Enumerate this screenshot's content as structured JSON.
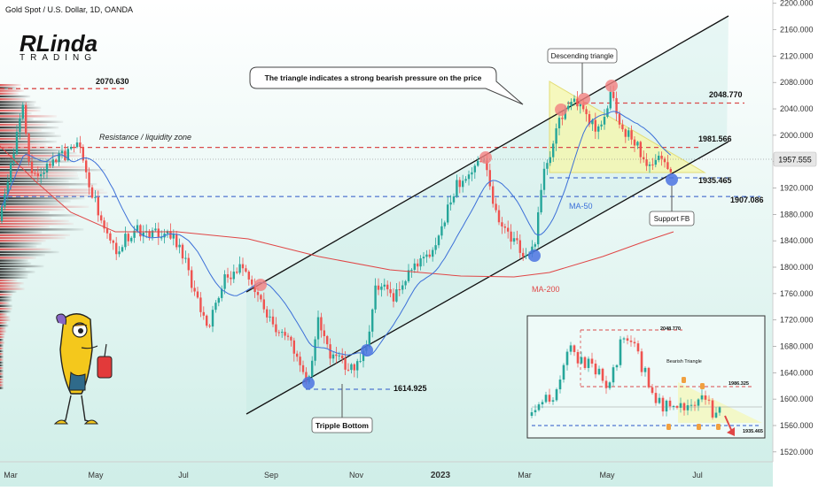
{
  "header": {
    "symbol_title": "Gold Spot / U.S. Dollar, 1D, OANDA",
    "logo_line1": "RLinda",
    "logo_line2": "TRADING"
  },
  "chart_data": {
    "type": "candlestick",
    "title": "Gold Spot / U.S. Dollar, 1D, OANDA",
    "x_tick_labels": [
      "Mar",
      "May",
      "Jul",
      "Sep",
      "Nov",
      "2023",
      "Mar",
      "May",
      "Jul"
    ],
    "y_axis": {
      "ticks": [
        1520,
        1560,
        1600,
        1640,
        1680,
        1720,
        1760,
        1800,
        1840,
        1880,
        1920,
        1960,
        2000,
        2040,
        2080,
        2120,
        2160,
        2200
      ],
      "ylim": [
        1505,
        2205
      ],
      "position": "right"
    },
    "current_price": 1957.555,
    "levels": [
      {
        "name": "Resistance / liquidity zone",
        "value": 1981.566,
        "label": "1981.566",
        "style": "red-dashed"
      },
      {
        "name": "",
        "value": 2070.63,
        "label": "2070.630",
        "style": "red-dashed"
      },
      {
        "name": "",
        "value": 2048.77,
        "label": "2048.770",
        "style": "red-dashed"
      },
      {
        "name": "",
        "value": 1935.465,
        "label": "1935.465",
        "style": "blue-dashed"
      },
      {
        "name": "",
        "value": 1907.086,
        "label": "1907.086",
        "style": "blue-dashed"
      },
      {
        "name": "",
        "value": 1614.925,
        "label": "1614.925",
        "style": "blue-dashed"
      }
    ],
    "indicators": [
      {
        "name": "MA-50",
        "color": "#3b6fd8"
      },
      {
        "name": "MA-200",
        "color": "#e04646"
      }
    ],
    "annotations": [
      {
        "text": "The triangle indicates a strong bearish pressure on the price",
        "kind": "callout"
      },
      {
        "text": "Descending triangle",
        "kind": "label"
      },
      {
        "text": "Support FB",
        "kind": "label"
      },
      {
        "text": "Tripple Bottom",
        "kind": "label"
      },
      {
        "text": "Resistance / liquidity zone",
        "kind": "label"
      }
    ],
    "inset": {
      "levels": [
        "2048.770",
        "1986.325",
        "1935.465"
      ],
      "label": "Bearish Triangle"
    },
    "colors": {
      "up": "#26a69a",
      "down": "#ef5350",
      "channel": "#111111",
      "price_tag_bg": "#e8e8e8",
      "bg_top": "#ffffff",
      "bg_bottom": "#d9f3ef"
    }
  }
}
